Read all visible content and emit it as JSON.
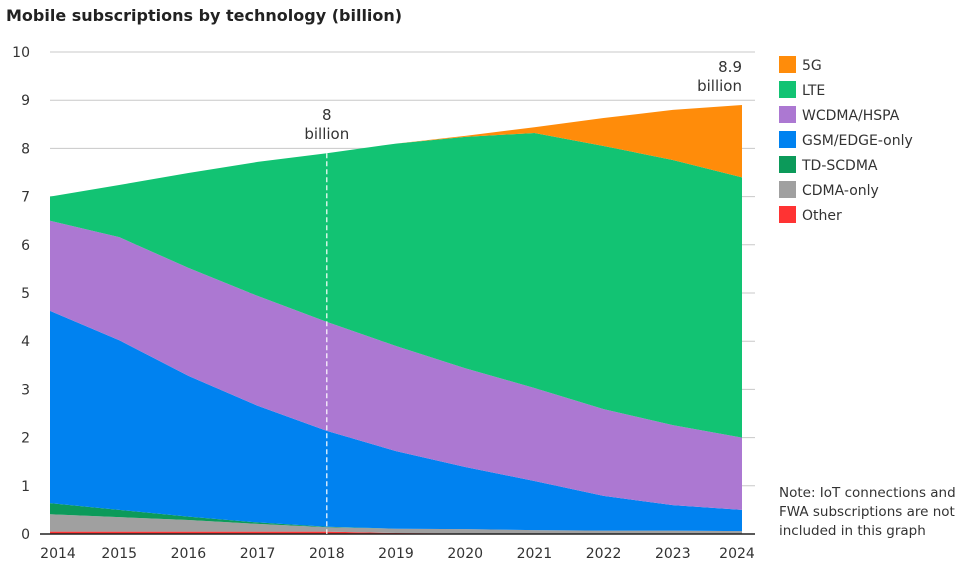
{
  "chart_data": {
    "type": "area",
    "stacked": true,
    "title": "Mobile subscriptions by technology (billion)",
    "xlabel": "",
    "ylabel": "",
    "x": [
      2014,
      2015,
      2016,
      2017,
      2018,
      2019,
      2020,
      2021,
      2022,
      2023,
      2024
    ],
    "ylim": [
      0,
      10
    ],
    "yticks": [
      0,
      1,
      2,
      3,
      4,
      5,
      6,
      7,
      8,
      9,
      10
    ],
    "grid": true,
    "legend_position": "right",
    "series": [
      {
        "name": "Other",
        "color": "#ff3333",
        "values": [
          0.05,
          0.05,
          0.05,
          0.05,
          0.05,
          0.02,
          0.01,
          0.01,
          0.01,
          0.01,
          0.01
        ]
      },
      {
        "name": "CDMA-only",
        "color": "#a0a0a0",
        "values": [
          0.36,
          0.3,
          0.24,
          0.16,
          0.09,
          0.09,
          0.09,
          0.07,
          0.06,
          0.06,
          0.05
        ]
      },
      {
        "name": "TD-SCDMA",
        "color": "#0c9a5a",
        "values": [
          0.23,
          0.15,
          0.07,
          0.03,
          0.01,
          0,
          0,
          0,
          0,
          0,
          0
        ]
      },
      {
        "name": "GSM/EDGE-only",
        "color": "#0082f0",
        "values": [
          3.99,
          3.52,
          2.92,
          2.42,
          1.99,
          1.61,
          1.29,
          1.02,
          0.72,
          0.53,
          0.44
        ]
      },
      {
        "name": "WCDMA/HSPA",
        "color": "#ac78d2",
        "values": [
          1.87,
          2.14,
          2.24,
          2.28,
          2.26,
          2.18,
          2.05,
          1.93,
          1.8,
          1.66,
          1.5
        ]
      },
      {
        "name": "LTE",
        "color": "#12c373",
        "values": [
          0.5,
          1.08,
          1.97,
          2.78,
          3.5,
          4.2,
          4.8,
          5.29,
          5.46,
          5.5,
          5.4
        ]
      },
      {
        "name": "5G",
        "color": "#ff8c0a",
        "values": [
          0,
          0,
          0,
          0,
          0,
          0,
          0.02,
          0.12,
          0.58,
          1.04,
          1.5
        ]
      }
    ],
    "legend_order": [
      "5G",
      "LTE",
      "WCDMA/HSPA",
      "GSM/EDGE-only",
      "TD-SCDMA",
      "CDMA-only",
      "Other"
    ],
    "annotations": [
      {
        "x": 2018,
        "value": "8",
        "unit": "billion",
        "dashed_line": true
      },
      {
        "x": 2024,
        "value": "8.9",
        "unit": "billion"
      }
    ],
    "note": [
      "Note: IoT connections and",
      "FWA subscriptions are not",
      "included in this graph"
    ]
  }
}
